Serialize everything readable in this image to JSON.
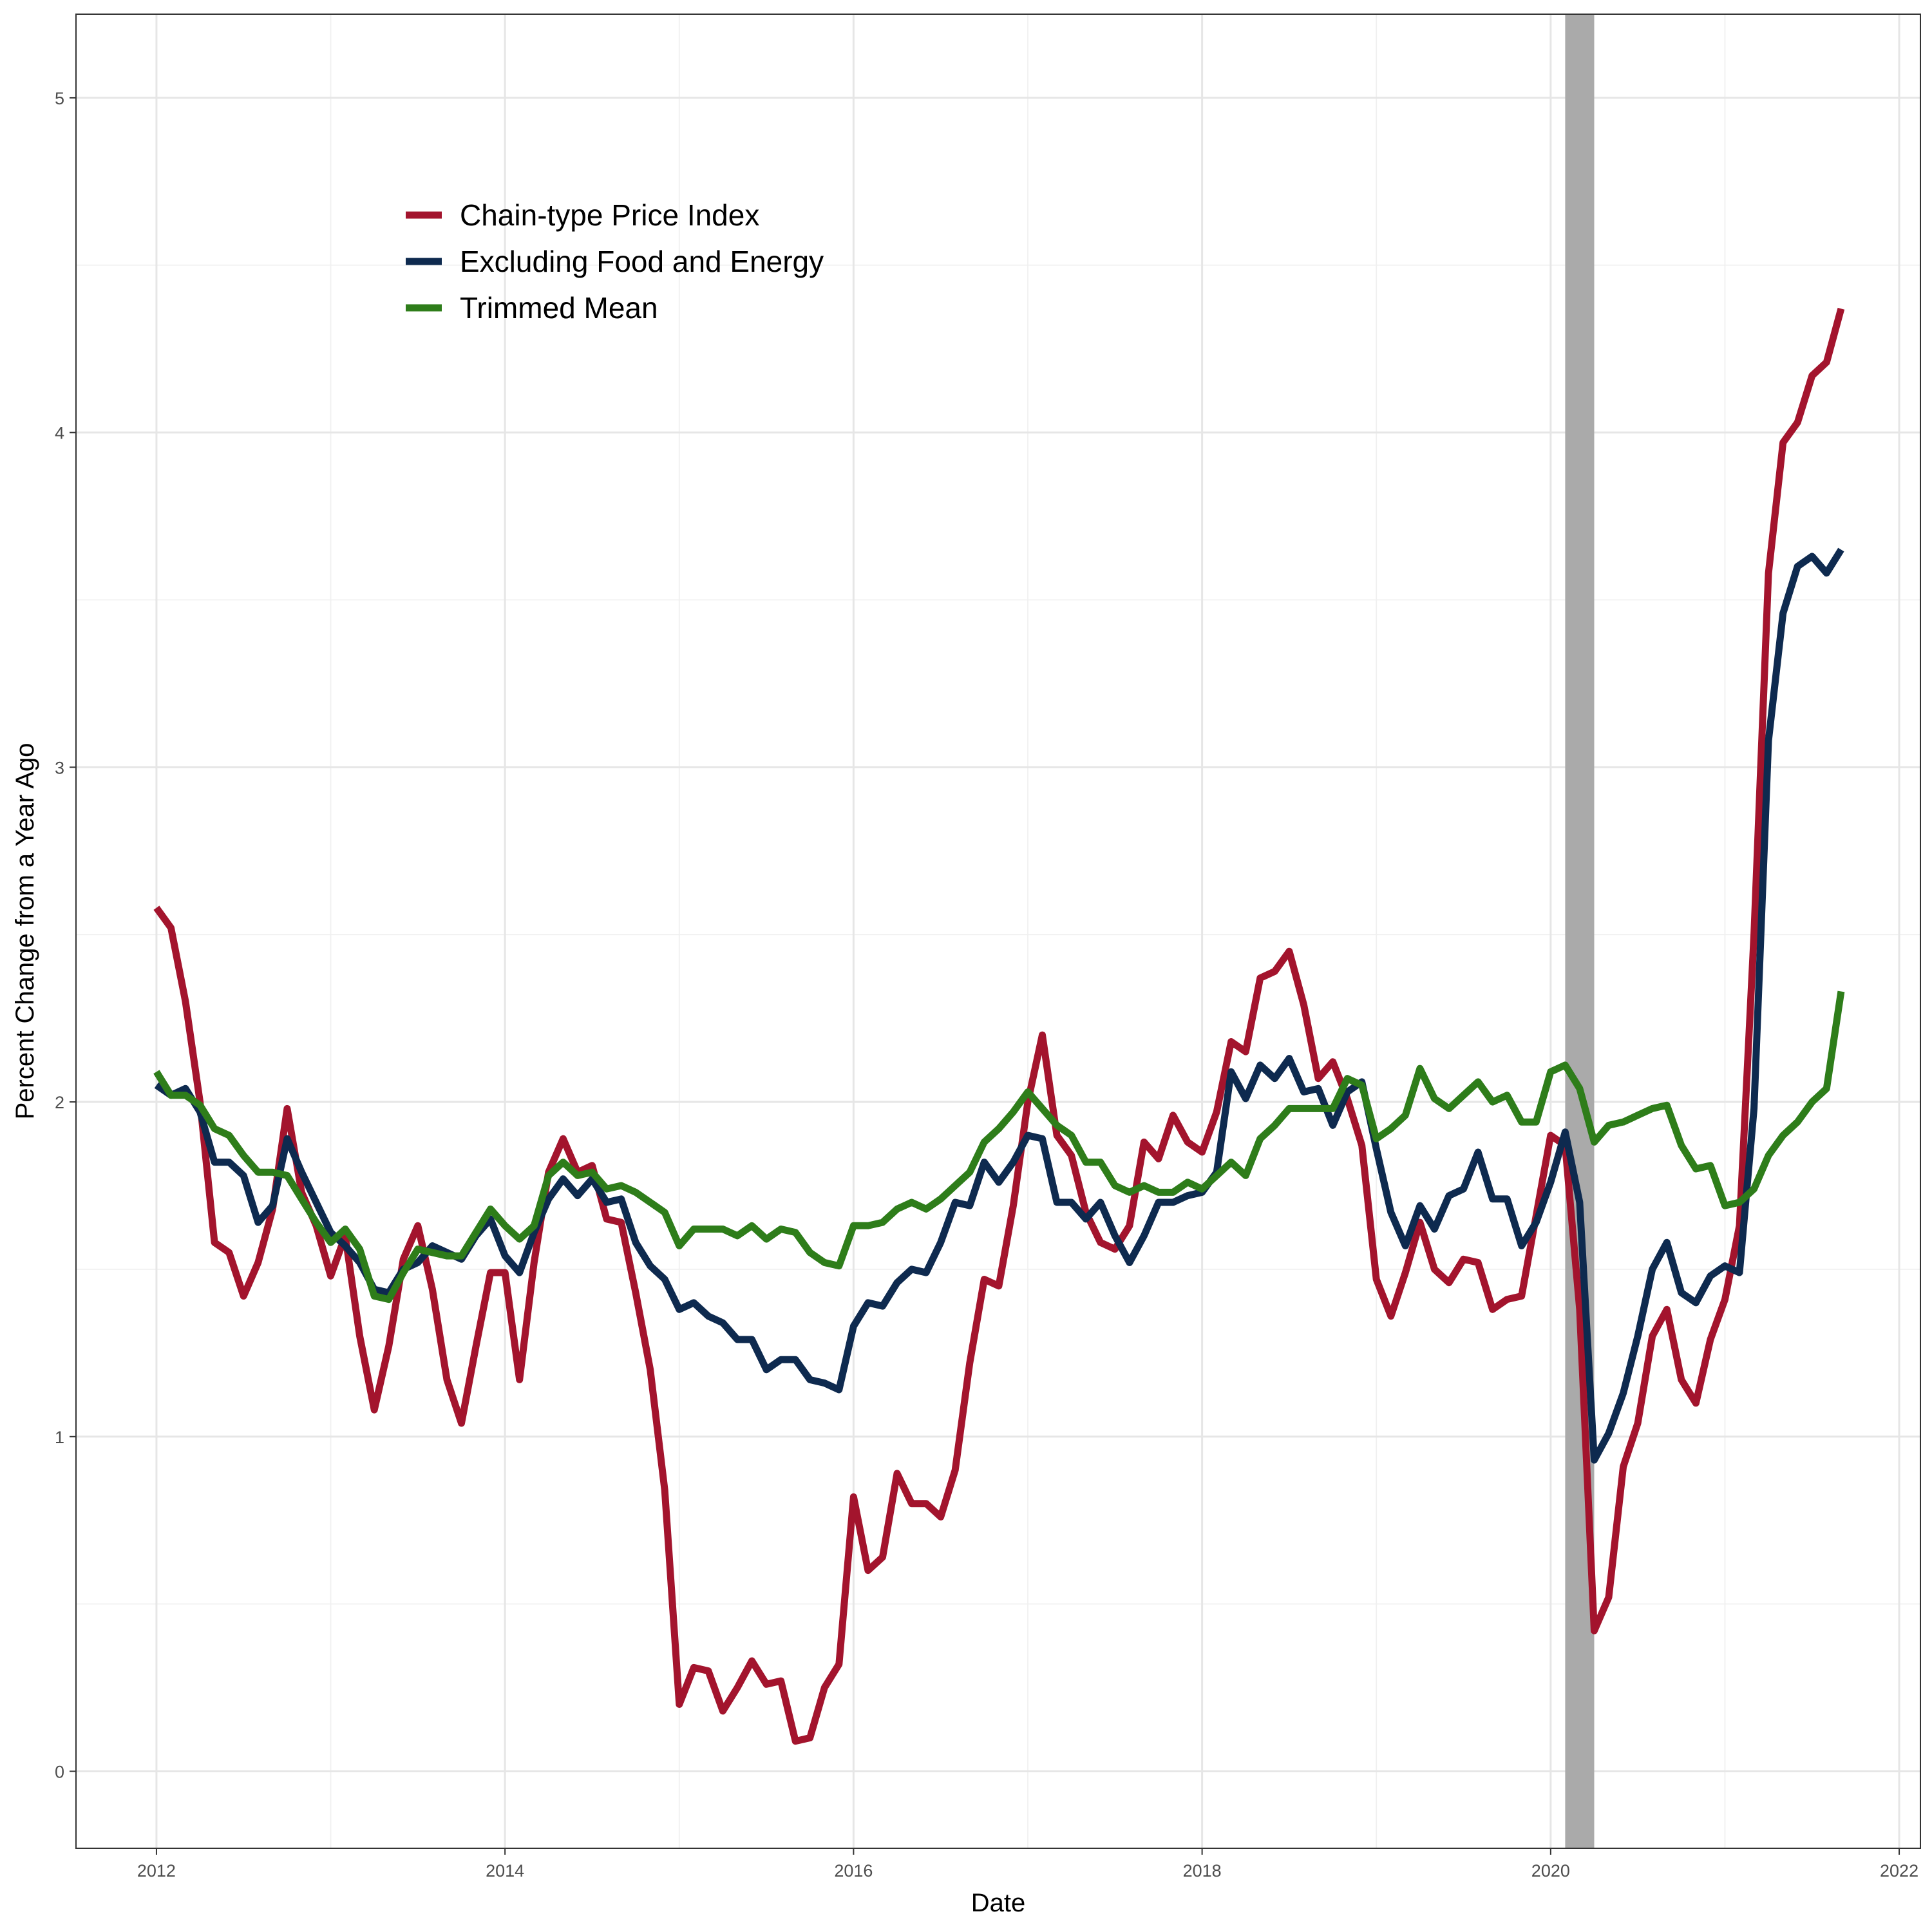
{
  "chart_data": {
    "type": "line",
    "title": "",
    "xlabel": "Date",
    "ylabel": "Percent Change from a Year Ago",
    "xlim": [
      "2011-07-15",
      "2022-02-15"
    ],
    "ylim": [
      -0.23,
      5.25
    ],
    "x_ticks": [
      "2012",
      "2014",
      "2016",
      "2018",
      "2020",
      "2022"
    ],
    "y_ticks": [
      "0",
      "1",
      "2",
      "3",
      "4",
      "5"
    ],
    "grid": true,
    "legend_position": "top-left",
    "shaded_periods": [
      {
        "start": "2020-02-01",
        "end": "2020-04-01",
        "color": "#aaaaaa"
      }
    ],
    "series": [
      {
        "name": "Chain-type Price Index",
        "color": "#a3142d",
        "start": "2012-01",
        "values": [
          2.58,
          2.52,
          2.3,
          2.0,
          1.58,
          1.55,
          1.42,
          1.52,
          1.68,
          1.98,
          1.73,
          1.63,
          1.48,
          1.6,
          1.3,
          1.08,
          1.27,
          1.53,
          1.63,
          1.44,
          1.17,
          1.04,
          1.27,
          1.49,
          1.49,
          1.17,
          1.52,
          1.79,
          1.89,
          1.79,
          1.81,
          1.65,
          1.64,
          1.43,
          1.2,
          0.84,
          0.2,
          0.31,
          0.3,
          0.18,
          0.25,
          0.33,
          0.26,
          0.27,
          0.09,
          0.1,
          0.25,
          0.32,
          0.82,
          0.6,
          0.64,
          0.89,
          0.8,
          0.8,
          0.76,
          0.9,
          1.22,
          1.47,
          1.45,
          1.69,
          2.0,
          2.2,
          1.9,
          1.84,
          1.67,
          1.58,
          1.56,
          1.63,
          1.88,
          1.83,
          1.96,
          1.88,
          1.85,
          1.97,
          2.18,
          2.15,
          2.37,
          2.39,
          2.45,
          2.29,
          2.07,
          2.12,
          2.01,
          1.87,
          1.47,
          1.36,
          1.49,
          1.64,
          1.5,
          1.46,
          1.53,
          1.52,
          1.38,
          1.41,
          1.42,
          1.66,
          1.9,
          1.87,
          1.38,
          0.42,
          0.52,
          0.91,
          1.04,
          1.3,
          1.38,
          1.17,
          1.1,
          1.29,
          1.41,
          1.63,
          2.5,
          3.58,
          3.97,
          4.03,
          4.17,
          4.21,
          4.37
        ]
      },
      {
        "name": "Excluding Food and Energy",
        "color": "#0e2a4f",
        "start": "2012-01",
        "values": [
          2.05,
          2.02,
          2.04,
          1.97,
          1.82,
          1.82,
          1.78,
          1.64,
          1.69,
          1.89,
          1.79,
          1.7,
          1.61,
          1.57,
          1.52,
          1.44,
          1.43,
          1.5,
          1.52,
          1.57,
          1.55,
          1.53,
          1.6,
          1.65,
          1.54,
          1.49,
          1.61,
          1.71,
          1.77,
          1.72,
          1.77,
          1.7,
          1.71,
          1.58,
          1.51,
          1.47,
          1.38,
          1.4,
          1.36,
          1.34,
          1.29,
          1.29,
          1.2,
          1.23,
          1.23,
          1.17,
          1.16,
          1.14,
          1.33,
          1.4,
          1.39,
          1.46,
          1.5,
          1.49,
          1.58,
          1.7,
          1.69,
          1.82,
          1.76,
          1.82,
          1.9,
          1.89,
          1.7,
          1.7,
          1.65,
          1.7,
          1.6,
          1.52,
          1.6,
          1.7,
          1.7,
          1.72,
          1.73,
          1.79,
          2.09,
          2.01,
          2.11,
          2.07,
          2.13,
          2.03,
          2.04,
          1.93,
          2.03,
          2.06,
          1.86,
          1.67,
          1.57,
          1.69,
          1.62,
          1.72,
          1.74,
          1.85,
          1.71,
          1.71,
          1.57,
          1.64,
          1.76,
          1.91,
          1.7,
          0.93,
          1.01,
          1.13,
          1.3,
          1.5,
          1.58,
          1.43,
          1.4,
          1.48,
          1.51,
          1.49,
          1.98,
          3.08,
          3.46,
          3.6,
          3.63,
          3.58,
          3.65
        ]
      },
      {
        "name": "Trimmed Mean",
        "color": "#2e7d1a",
        "start": "2012-01",
        "values": [
          2.09,
          2.02,
          2.02,
          1.99,
          1.92,
          1.9,
          1.84,
          1.79,
          1.79,
          1.78,
          1.71,
          1.64,
          1.58,
          1.62,
          1.56,
          1.42,
          1.41,
          1.49,
          1.56,
          1.55,
          1.54,
          1.54,
          1.61,
          1.68,
          1.63,
          1.59,
          1.63,
          1.78,
          1.82,
          1.78,
          1.79,
          1.74,
          1.75,
          1.73,
          1.7,
          1.67,
          1.57,
          1.62,
          1.62,
          1.62,
          1.6,
          1.63,
          1.59,
          1.62,
          1.61,
          1.55,
          1.52,
          1.51,
          1.63,
          1.63,
          1.64,
          1.68,
          1.7,
          1.68,
          1.71,
          1.75,
          1.79,
          1.88,
          1.92,
          1.97,
          2.03,
          1.98,
          1.93,
          1.9,
          1.82,
          1.82,
          1.75,
          1.73,
          1.75,
          1.73,
          1.73,
          1.76,
          1.74,
          1.78,
          1.82,
          1.78,
          1.89,
          1.93,
          1.98,
          1.98,
          1.98,
          1.98,
          2.07,
          2.05,
          1.89,
          1.92,
          1.96,
          2.1,
          2.01,
          1.98,
          2.02,
          2.06,
          2.0,
          2.02,
          1.94,
          1.94,
          2.09,
          2.11,
          2.04,
          1.88,
          1.93,
          1.94,
          1.96,
          1.98,
          1.99,
          1.87,
          1.8,
          1.81,
          1.69,
          1.7,
          1.74,
          1.84,
          1.9,
          1.94,
          2.0,
          2.04,
          2.33
        ]
      }
    ]
  }
}
